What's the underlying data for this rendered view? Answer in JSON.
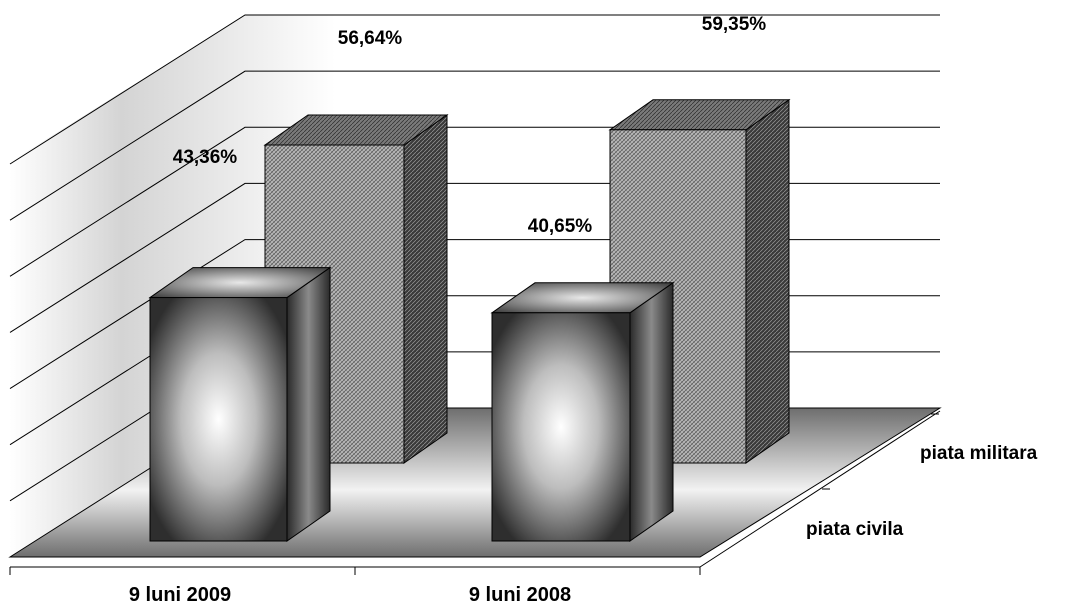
{
  "chart_data": {
    "type": "bar",
    "title": "",
    "xlabel": "",
    "ylabel": "",
    "categories": [
      "9 luni 2009",
      "9 luni 2008"
    ],
    "series": [
      {
        "name": "piata civila",
        "values": [
          43.36,
          40.65
        ],
        "labels": [
          "43,36%",
          "40,65%"
        ]
      },
      {
        "name": "piata militara",
        "values": [
          56.64,
          59.35
        ],
        "labels": [
          "56,64%",
          "59,35%"
        ]
      }
    ],
    "ylim": [
      0,
      70
    ],
    "grid": true,
    "legend": "right (depth axis labels)",
    "style": "3d-bars",
    "colors": {
      "civila": "#808080",
      "militara": "#9a9a9a",
      "grid": "#000000",
      "floor": "#8c8c8c"
    }
  }
}
